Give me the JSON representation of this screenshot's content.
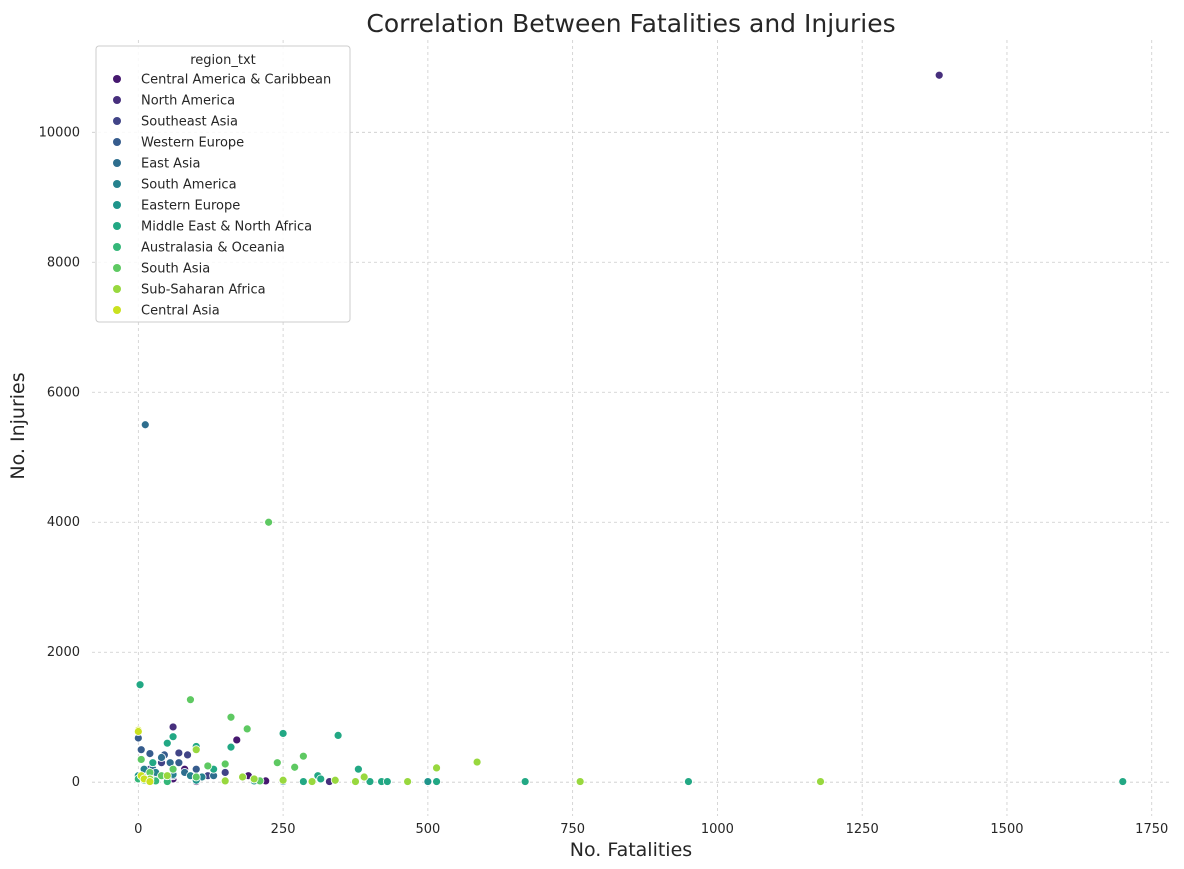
{
  "chart_data": {
    "type": "scatter",
    "title": "Correlation Between Fatalities and Injuries",
    "xlabel": "No. Fatalities",
    "ylabel": "No. Injuries",
    "xlim": [
      -80,
      1785
    ],
    "ylim": [
      -520,
      11420
    ],
    "xticks": [
      0,
      250,
      500,
      750,
      1000,
      1250,
      1500,
      1750
    ],
    "yticks": [
      0,
      2000,
      4000,
      6000,
      8000,
      10000
    ],
    "grid": true,
    "legend": {
      "title": "region_txt",
      "placement": "top-left",
      "entries": [
        {
          "name": "Central America & Caribbean",
          "color": "#46186f"
        },
        {
          "name": "North America",
          "color": "#472f7d"
        },
        {
          "name": "Southeast Asia",
          "color": "#414487"
        },
        {
          "name": "Western Europe",
          "color": "#365c8d"
        },
        {
          "name": "East Asia",
          "color": "#2e6e8e"
        },
        {
          "name": "South America",
          "color": "#26828e"
        },
        {
          "name": "Eastern Europe",
          "color": "#1f958b"
        },
        {
          "name": "Middle East & North Africa",
          "color": "#22a884"
        },
        {
          "name": "Australasia & Oceania",
          "color": "#35b779"
        },
        {
          "name": "South Asia",
          "color": "#5ec962"
        },
        {
          "name": "Sub-Saharan Africa",
          "color": "#98d83e"
        },
        {
          "name": "Central Asia",
          "color": "#cae11f"
        }
      ]
    },
    "series": [
      {
        "name": "Central America & Caribbean",
        "x": [
          190,
          170,
          220,
          60,
          100,
          80,
          30,
          10
        ],
        "y": [
          100,
          650,
          20,
          50,
          10,
          200,
          80,
          20
        ]
      },
      {
        "name": "North America",
        "x": [
          1383,
          60,
          10,
          15,
          200,
          330
        ],
        "y": [
          10878,
          850,
          30,
          70,
          40,
          10
        ]
      },
      {
        "name": "Southeast Asia",
        "x": [
          70,
          85,
          40,
          20,
          5,
          150,
          300,
          120
        ],
        "y": [
          450,
          420,
          300,
          200,
          100,
          150,
          20,
          100
        ]
      },
      {
        "name": "Western Europe",
        "x": [
          0,
          5,
          20,
          45,
          70,
          100,
          60,
          15
        ],
        "y": [
          680,
          500,
          440,
          420,
          300,
          200,
          100,
          50
        ]
      },
      {
        "name": "East Asia",
        "x": [
          12,
          40,
          55,
          25,
          80,
          130
        ],
        "y": [
          5500,
          380,
          300,
          200,
          150,
          100
        ]
      },
      {
        "name": "South America",
        "x": [
          10,
          30,
          60,
          90,
          110,
          150,
          250,
          10
        ],
        "y": [
          200,
          150,
          120,
          100,
          80,
          20,
          10,
          50
        ]
      },
      {
        "name": "Eastern Europe",
        "x": [
          0,
          20,
          50,
          100,
          200,
          300,
          500,
          950
        ],
        "y": [
          100,
          80,
          50,
          30,
          20,
          10,
          10,
          10
        ]
      },
      {
        "name": "Middle East & North Africa",
        "x": [
          3,
          60,
          100,
          250,
          345,
          380,
          1700,
          668,
          950,
          420,
          430,
          515,
          160,
          310,
          285,
          315,
          400,
          25,
          50,
          130
        ],
        "y": [
          1500,
          700,
          550,
          750,
          720,
          200,
          10,
          10,
          10,
          10,
          10,
          10,
          540,
          100,
          10,
          50,
          10,
          300,
          600,
          200
        ]
      },
      {
        "name": "Australasia & Oceania",
        "x": [
          0,
          10,
          30,
          50
        ],
        "y": [
          50,
          30,
          20,
          10
        ]
      },
      {
        "name": "South Asia",
        "x": [
          160,
          90,
          188,
          225,
          285,
          240,
          270,
          150,
          120,
          60,
          5,
          20,
          40,
          100,
          200,
          210
        ],
        "y": [
          1000,
          1270,
          820,
          4000,
          400,
          300,
          230,
          280,
          250,
          200,
          350,
          150,
          100,
          80,
          50,
          20
        ]
      },
      {
        "name": "Sub-Saharan Africa",
        "x": [
          1178,
          763,
          585,
          515,
          465,
          390,
          375,
          340,
          100,
          50,
          20,
          150,
          300,
          250,
          200,
          180
        ],
        "y": [
          10,
          10,
          310,
          220,
          10,
          80,
          10,
          30,
          500,
          100,
          50,
          20,
          10,
          30,
          50,
          80
        ]
      },
      {
        "name": "Central Asia",
        "x": [
          0,
          0,
          5,
          10,
          20
        ],
        "y": [
          800,
          780,
          100,
          50,
          10
        ]
      }
    ]
  }
}
